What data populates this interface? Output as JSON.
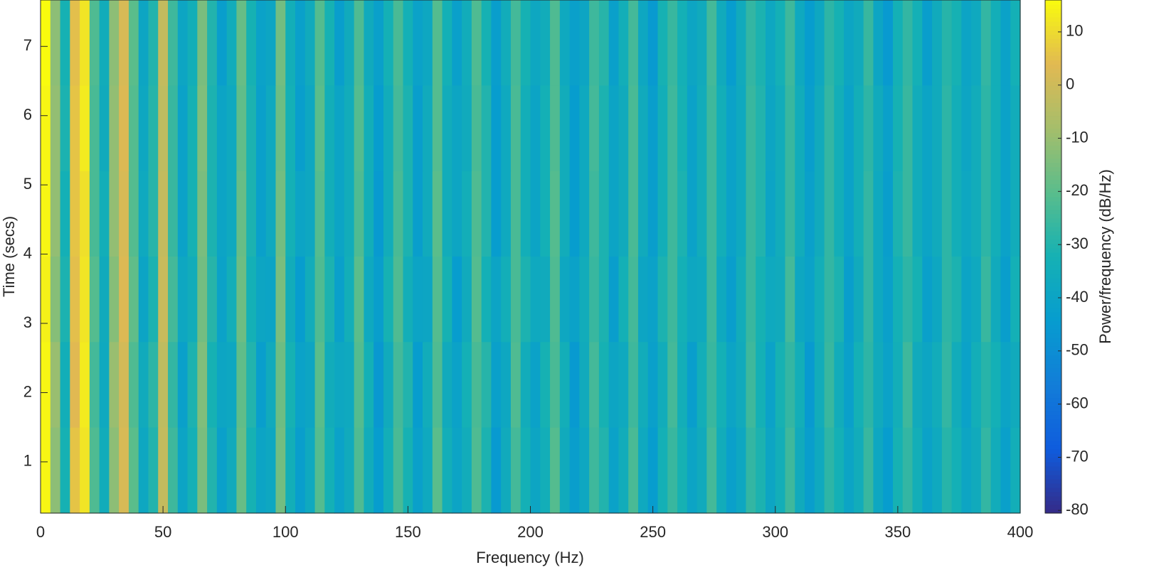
{
  "chart_data": {
    "type": "heatmap",
    "xlabel": "Frequency (Hz)",
    "ylabel": "Time (secs)",
    "colorbar_label": "Power/frequency (dB/Hz)",
    "colormap": "parula",
    "xlim": [
      0,
      400
    ],
    "xticks": [
      0,
      50,
      100,
      150,
      200,
      250,
      300,
      350,
      400
    ],
    "ylim": [
      0.26,
      7.67
    ],
    "yticks": [
      1,
      2,
      3,
      4,
      5,
      6,
      7
    ],
    "clim": [
      -80.5,
      16
    ],
    "cticks": [
      -80,
      -70,
      -60,
      -50,
      -40,
      -30,
      -20,
      -10,
      0,
      10
    ],
    "z": [
      [
        16,
        -12,
        -32,
        5,
        12,
        -22,
        -35,
        -12,
        2,
        -20,
        -39,
        -30,
        -2,
        -25,
        -39,
        -34,
        -15,
        -30,
        -43,
        -35,
        -18,
        -32,
        -41,
        -39,
        -16,
        -34,
        -42,
        -36,
        -21,
        -32,
        -43,
        -36,
        -22,
        -36,
        -42,
        -33,
        -23,
        -33,
        -41,
        -38,
        -21,
        -33,
        -42,
        -35,
        -22,
        -32,
        -43,
        -35,
        -24,
        -32,
        -38,
        -35,
        -22,
        -37,
        -42,
        -39,
        -25,
        -29,
        -42,
        -34,
        -24,
        -38,
        -45,
        -32,
        -26,
        -33,
        -39,
        -36,
        -24,
        -36,
        -44,
        -36,
        -27,
        -31,
        -38,
        -33,
        -25,
        -37,
        -44,
        -38,
        -28,
        -32,
        -39,
        -36,
        -26,
        -39,
        -45,
        -33,
        -27,
        -33,
        -43,
        -36,
        -29,
        -32,
        -40,
        -37,
        -27,
        -34,
        -41,
        -33
      ],
      [
        15,
        -11,
        -31,
        6,
        13,
        -23,
        -36,
        -11,
        3,
        -21,
        -38,
        -29,
        -3,
        -26,
        -41,
        -32,
        -14,
        -31,
        -40,
        -37,
        -19,
        -31,
        -42,
        -37,
        -17,
        -33,
        -43,
        -38,
        -20,
        -34,
        -40,
        -35,
        -21,
        -34,
        -44,
        -35,
        -24,
        -31,
        -43,
        -36,
        -21,
        -35,
        -39,
        -36,
        -23,
        -30,
        -44,
        -37,
        -23,
        -34,
        -40,
        -33,
        -22,
        -35,
        -44,
        -37,
        -24,
        -31,
        -40,
        -36,
        -23,
        -36,
        -43,
        -34,
        -25,
        -32,
        -41,
        -35,
        -25,
        -34,
        -41,
        -37,
        -26,
        -30,
        -39,
        -35,
        -26,
        -35,
        -43,
        -36,
        -27,
        -34,
        -41,
        -34,
        -28,
        -36,
        -42,
        -32,
        -26,
        -35,
        -40,
        -36,
        -28,
        -34,
        -39,
        -35,
        -28,
        -34,
        -41,
        -35
      ],
      [
        15,
        -11,
        -33,
        6,
        11,
        -23,
        -34,
        -11,
        2,
        -21,
        -37,
        -29,
        -2,
        -26,
        -41,
        -32,
        -15,
        -31,
        -40,
        -37,
        -18,
        -31,
        -42,
        -37,
        -16,
        -33,
        -40,
        -38,
        -21,
        -34,
        -40,
        -35,
        -22,
        -34,
        -45,
        -35,
        -23,
        -31,
        -43,
        -36,
        -20,
        -35,
        -39,
        -34,
        -22,
        -30,
        -44,
        -37,
        -23,
        -34,
        -40,
        -33,
        -21,
        -35,
        -44,
        -37,
        -25,
        -31,
        -40,
        -36,
        -23,
        -36,
        -43,
        -34,
        -25,
        -31,
        -41,
        -35,
        -25,
        -34,
        -41,
        -37,
        -26,
        -30,
        -40,
        -35,
        -26,
        -35,
        -42,
        -36,
        -27,
        -34,
        -41,
        -34,
        -27,
        -37,
        -43,
        -31,
        -26,
        -35,
        -40,
        -36,
        -28,
        -34,
        -38,
        -35,
        -28,
        -34,
        -41,
        -35
      ],
      [
        14,
        -13,
        -31,
        5,
        12,
        -21,
        -36,
        -13,
        3,
        -19,
        -40,
        -31,
        -1,
        -24,
        -38,
        -35,
        -16,
        -29,
        -41,
        -34,
        -17,
        -33,
        -39,
        -40,
        -15,
        -35,
        -44,
        -35,
        -22,
        -31,
        -42,
        -34,
        -20,
        -37,
        -43,
        -32,
        -22,
        -34,
        -40,
        -39,
        -21,
        -32,
        -44,
        -36,
        -21,
        -33,
        -40,
        -34,
        -23,
        -31,
        -37,
        -36,
        -22,
        -38,
        -41,
        -35,
        -26,
        -31,
        -43,
        -33,
        -24,
        -39,
        -41,
        -31,
        -25,
        -33,
        -38,
        -37,
        -25,
        -37,
        -43,
        -35,
        -26,
        -32,
        -37,
        -36,
        -24,
        -38,
        -41,
        -34,
        -27,
        -31,
        -43,
        -36,
        -27,
        -37,
        -42,
        -33,
        -28,
        -32,
        -42,
        -38,
        -28,
        -31,
        -40,
        -37,
        -26,
        -36,
        -43,
        -33
      ],
      [
        15,
        -10,
        -34,
        4,
        13,
        -24,
        -37,
        -10,
        1,
        -22,
        -36,
        -28,
        -3,
        -27,
        -42,
        -31,
        -14,
        -32,
        -39,
        -38,
        -19,
        -30,
        -43,
        -36,
        -17,
        -32,
        -41,
        -39,
        -20,
        -35,
        -38,
        -37,
        -21,
        -33,
        -46,
        -36,
        -24,
        -30,
        -44,
        -35,
        -22,
        -36,
        -41,
        -33,
        -23,
        -29,
        -42,
        -38,
        -22,
        -35,
        -41,
        -32,
        -23,
        -34,
        -45,
        -36,
        -24,
        -32,
        -39,
        -37,
        -25,
        -35,
        -42,
        -35,
        -24,
        -34,
        -43,
        -34,
        -26,
        -33,
        -40,
        -36,
        -25,
        -33,
        -41,
        -32,
        -27,
        -34,
        -45,
        -35,
        -26,
        -35,
        -42,
        -33,
        -28,
        -36,
        -41,
        -34,
        -25,
        -36,
        -39,
        -35,
        -27,
        -35,
        -41,
        -34,
        -29,
        -33,
        -40,
        -36
      ],
      [
        15,
        -12,
        -32,
        6,
        12,
        -22,
        -35,
        -12,
        2,
        -20,
        -38,
        -30,
        -2,
        -25,
        -40,
        -33,
        -15,
        -30,
        -42,
        -36,
        -18,
        -32,
        -40,
        -38,
        -16,
        -34,
        -43,
        -37,
        -21,
        -33,
        -41,
        -36,
        -22,
        -35,
        -44,
        -34,
        -23,
        -32,
        -42,
        -37,
        -20,
        -34,
        -40,
        -35,
        -22,
        -31,
        -45,
        -36,
        -24,
        -33,
        -39,
        -34,
        -21,
        -36,
        -43,
        -38,
        -25,
        -30,
        -41,
        -35,
        -23,
        -37,
        -44,
        -33,
        -26,
        -32,
        -40,
        -36,
        -24,
        -35,
        -42,
        -38,
        -27,
        -31,
        -39,
        -34,
        -25,
        -36,
        -43,
        -37,
        -28,
        -33,
        -40,
        -35,
        -26,
        -38,
        -44,
        -32,
        -27,
        -34,
        -41,
        -37,
        -29,
        -33,
        -39,
        -36,
        -27,
        -35,
        -42,
        -34
      ]
    ]
  }
}
